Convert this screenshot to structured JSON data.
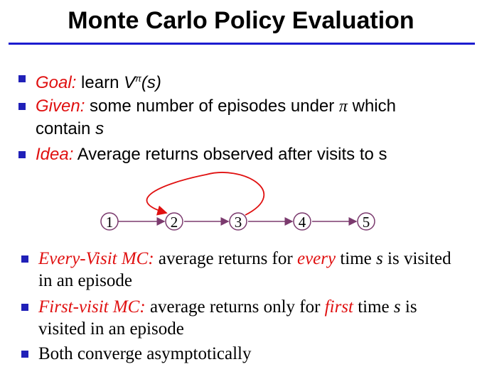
{
  "slide": {
    "title": "Monte Carlo Policy Evaluation"
  },
  "bullets_top": {
    "goal": {
      "label": "Goal:",
      "text": "learn",
      "v": "V",
      "pi_sup": "π",
      "s_arg": "(s)"
    },
    "given": {
      "label": "Given:",
      "text1": "some number of episodes under",
      "pi": "π",
      "text2": "which",
      "text3": "contain",
      "s": "s"
    },
    "idea": {
      "label": "Idea:",
      "text": "Average returns observed after visits to s"
    }
  },
  "diagram": {
    "nodes": [
      "1",
      "2",
      "3",
      "4",
      "5"
    ],
    "colors": {
      "node_stroke": "#7b3a6e",
      "edge": "#7b3a6e",
      "loop": "#e01010"
    }
  },
  "bullets_bottom": {
    "every_visit": {
      "label": "Every-Visit MC:",
      "t1": "average returns for",
      "emph": "every",
      "t2": "time",
      "s": "s",
      "t3": "is visited",
      "t4": "in an episode"
    },
    "first_visit": {
      "label": "First-visit MC:",
      "t1": "average returns only for",
      "emph": "first",
      "t2": "time",
      "s": "s",
      "t3": "is",
      "t4": "visited in an episode"
    },
    "both": {
      "text": "Both converge asymptotically"
    }
  },
  "colors": {
    "accent_red": "#e01010",
    "bullet_blue": "#2020b8",
    "rule_blue": "#1c1ccf"
  }
}
